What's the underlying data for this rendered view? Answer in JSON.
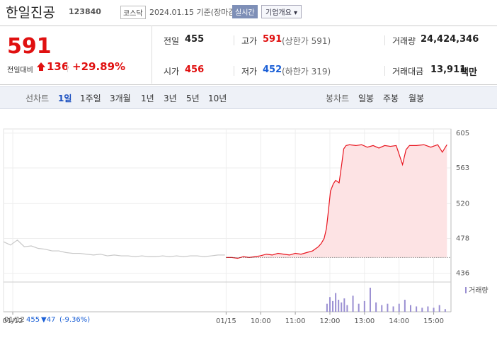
{
  "header": {
    "name": "한일진공",
    "code": "123840",
    "market": "코스닥",
    "date": "2024.01.15 기준(장마감)",
    "realtime": "실시간",
    "company": "기업개요"
  },
  "summary": {
    "price": "591",
    "change_label": "전일대비",
    "change": "136",
    "change_pct": "+29.89%",
    "items": [
      {
        "label": "전일",
        "value": "455"
      },
      {
        "label": "고가",
        "value": "591",
        "note": "(상한가 591)"
      },
      {
        "label": "거래량",
        "value": "24,424,346"
      },
      {
        "label": "시가",
        "value": "456"
      },
      {
        "label": "저가",
        "value": "452",
        "note": "(하한가 319)"
      },
      {
        "label": "거래대금",
        "value": "13,911",
        "unit": "백만"
      }
    ]
  },
  "tabs": {
    "line_label": "선차트",
    "line": [
      "1일",
      "1주일",
      "3개월",
      "1년",
      "3년",
      "5년",
      "10년"
    ],
    "candle_label": "봉차트",
    "candle": [
      "일봉",
      "주봉",
      "월봉"
    ]
  },
  "chart_data": {
    "type": "line",
    "baseline": 455,
    "ylim": [
      428,
      610
    ],
    "yticks": [
      436,
      478,
      520,
      563,
      605
    ],
    "xlim": [
      -386,
      390
    ],
    "xticks": [
      {
        "value": -370,
        "label": "01/12"
      },
      {
        "value": 0,
        "label": "01/15"
      },
      {
        "value": 60,
        "label": "10:00"
      },
      {
        "value": 120,
        "label": "11:00"
      },
      {
        "value": 180,
        "label": "12:00"
      },
      {
        "value": 240,
        "label": "13:00"
      },
      {
        "value": 300,
        "label": "14:00"
      },
      {
        "value": 360,
        "label": "15:00"
      }
    ],
    "series": [
      {
        "color": "#c8c8c8",
        "x": [
          -386,
          -374,
          -362,
          -350,
          -338,
          -326,
          -314,
          -302,
          -290,
          -278,
          -266,
          -254,
          -242,
          -230,
          -218,
          -206,
          -194,
          -182,
          -170,
          -158,
          -146,
          -134,
          -122,
          -110,
          -98,
          -86,
          -74,
          -62,
          -50,
          -38,
          -26,
          -14,
          -2
        ],
        "values": [
          474,
          470,
          476,
          468,
          469,
          466,
          465,
          463,
          463,
          461,
          460,
          460,
          459,
          458,
          459,
          457,
          458,
          457,
          457,
          456,
          457,
          456,
          456,
          457,
          456,
          457,
          456,
          457,
          457,
          456,
          457,
          458,
          458
        ]
      },
      {
        "color": "#e8141e",
        "fill": "#fde3e4",
        "x": [
          0,
          10,
          20,
          30,
          40,
          50,
          59,
          70,
          80,
          90,
          100,
          110,
          120,
          130,
          140,
          150,
          160,
          165,
          170,
          174,
          178,
          181,
          186,
          190,
          196,
          200,
          204,
          208,
          214,
          225,
          235,
          245,
          255,
          265,
          275,
          285,
          295,
          306,
          312,
          318,
          330,
          343,
          355,
          367,
          375,
          383
        ],
        "values": [
          455,
          455,
          454,
          456,
          455,
          456,
          457,
          459,
          458,
          460,
          459,
          458,
          460,
          459,
          461,
          463,
          468,
          472,
          478,
          490,
          515,
          535,
          544,
          548,
          545,
          565,
          586,
          590,
          591,
          590,
          591,
          588,
          590,
          587,
          590,
          589,
          590,
          567,
          585,
          590,
          590,
          591,
          588,
          591,
          582,
          591
        ]
      }
    ],
    "volume": {
      "label": "거래량",
      "color": "#9a8fd2",
      "x": [
        175,
        180,
        185,
        190,
        195,
        200,
        205,
        210,
        220,
        230,
        240,
        250,
        260,
        270,
        280,
        290,
        300,
        310,
        320,
        330,
        340,
        350,
        360,
        370,
        380
      ],
      "values": [
        30,
        55,
        40,
        70,
        45,
        35,
        50,
        25,
        60,
        30,
        40,
        90,
        35,
        25,
        30,
        20,
        30,
        45,
        25,
        20,
        15,
        20,
        15,
        25,
        10
      ]
    }
  },
  "footer": {
    "date": "01/12",
    "price": "455",
    "change": "▼47",
    "pct": "(-9.36%)"
  }
}
